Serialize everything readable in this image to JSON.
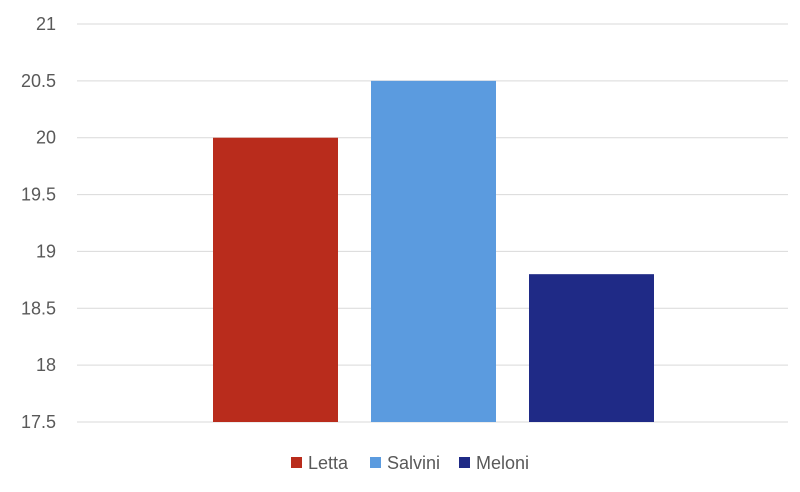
{
  "chart_data": {
    "type": "bar",
    "title": "",
    "xlabel": "",
    "ylabel": "",
    "categories": [
      "Letta",
      "Salvini",
      "Meloni"
    ],
    "series": [
      {
        "name": "Letta",
        "category": "Letta",
        "value": 20.0,
        "color": "#b92c1c"
      },
      {
        "name": "Salvini",
        "category": "Salvini",
        "value": 20.5,
        "color": "#5b9bdf"
      },
      {
        "name": "Meloni",
        "category": "Meloni",
        "value": 18.8,
        "color": "#1f2a86"
      }
    ],
    "ylim": [
      17.5,
      21
    ],
    "yticks": [
      17.5,
      18,
      18.5,
      19,
      19.5,
      20,
      20.5,
      21
    ],
    "ytick_labels": [
      "17.5",
      "18",
      "18.5",
      "19",
      "19.5",
      "20",
      "20.5",
      "21"
    ],
    "grid": true,
    "legend": "bottom-center"
  }
}
